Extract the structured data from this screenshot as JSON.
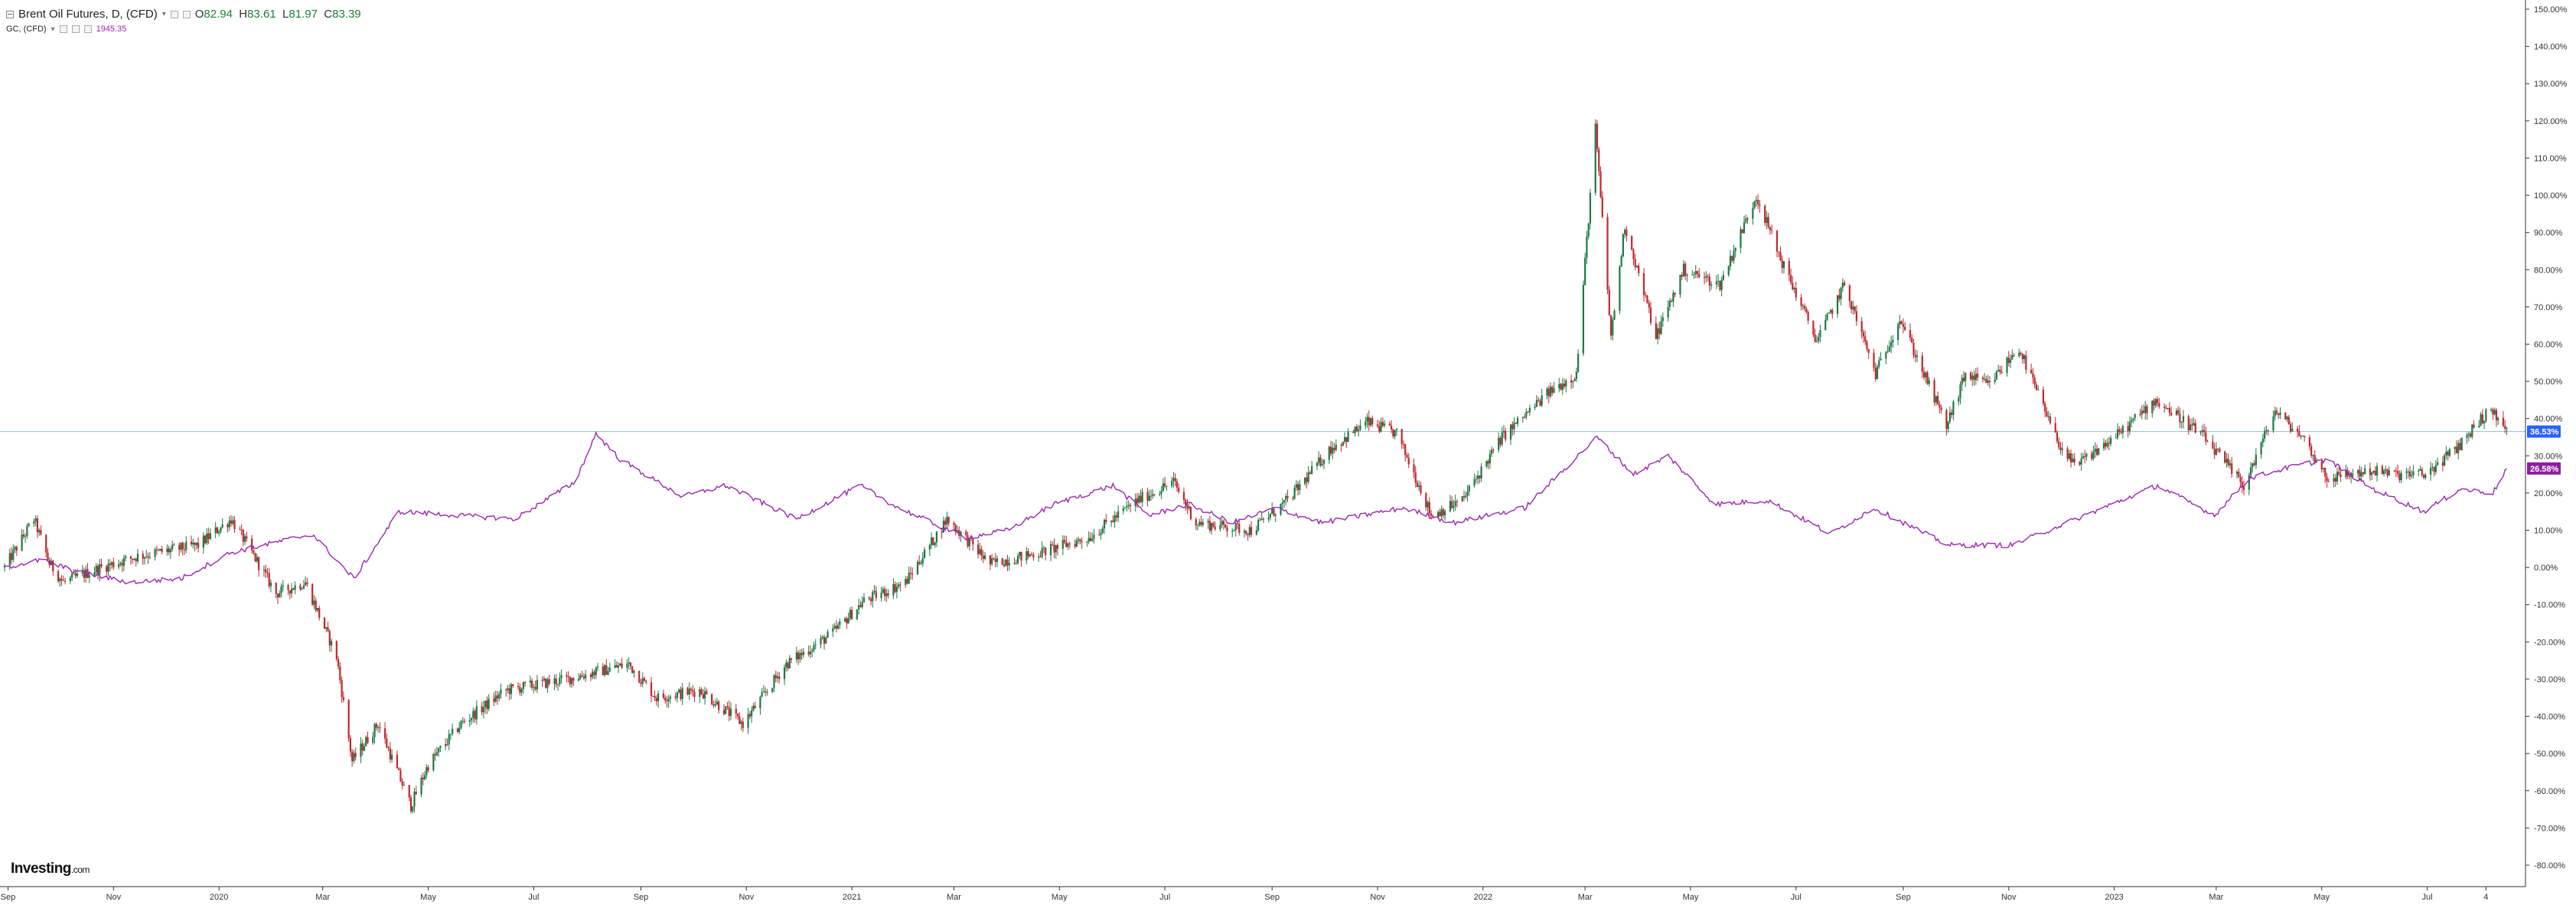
{
  "legend": {
    "main": {
      "symbol": "Brent Oil Futures, D, (CFD)",
      "open_label": "O",
      "open": "82.94",
      "high_label": "H",
      "high": "83.61",
      "low_label": "L",
      "low": "81.97",
      "close_label": "C",
      "close": "83.39"
    },
    "overlay": {
      "symbol": "GC, (CFD)",
      "value": "1945.35"
    }
  },
  "brand": {
    "name": "Investing",
    "suffix": ".com"
  },
  "colors": {
    "up": "#1b7a45",
    "down": "#c0272d",
    "overlay": "#9b27af",
    "last_price_badge": "#2962ff",
    "overlay_badge": "#8e1fa0",
    "reference_line": "#9fc3d6",
    "axis": "#333333"
  },
  "chart_data": {
    "type": "line",
    "scale": "percent",
    "ylim": [
      -85,
      150
    ],
    "yticks": [
      "150.00%",
      "140.00%",
      "130.00%",
      "120.00%",
      "110.00%",
      "100.00%",
      "90.00%",
      "80.00%",
      "70.00%",
      "60.00%",
      "50.00%",
      "40.00%",
      "30.00%",
      "20.00%",
      "10.00%",
      "0.00%",
      "-10.00%",
      "-20.00%",
      "-30.00%",
      "-40.00%",
      "-50.00%",
      "-60.00%",
      "-70.00%",
      "-80.00%"
    ],
    "ytick_values": [
      150,
      140,
      130,
      120,
      110,
      100,
      90,
      80,
      70,
      60,
      50,
      40,
      30,
      20,
      10,
      0,
      -10,
      -20,
      -30,
      -40,
      -50,
      -60,
      -70,
      -80
    ],
    "xticks": [
      "Sep",
      "Nov",
      "2020",
      "Mar",
      "May",
      "Jul",
      "Sep",
      "Nov",
      "2021",
      "Mar",
      "May",
      "Jul",
      "Sep",
      "Nov",
      "2022",
      "Mar",
      "May",
      "Jul",
      "Sep",
      "Nov",
      "2023",
      "Mar",
      "May",
      "Jul",
      "4"
    ],
    "xtick_dates": [
      "2019-09-01",
      "2019-11-01",
      "2020-01-01",
      "2020-03-01",
      "2020-05-01",
      "2020-07-01",
      "2020-09-01",
      "2020-11-01",
      "2021-01-01",
      "2021-03-01",
      "2021-05-01",
      "2021-07-01",
      "2021-09-01",
      "2021-11-01",
      "2022-01-01",
      "2022-03-01",
      "2022-05-01",
      "2022-07-01",
      "2022-09-01",
      "2022-11-01",
      "2023-01-01",
      "2023-03-01",
      "2023-05-01",
      "2023-07-01",
      "2023-08-04"
    ],
    "xlim": [
      "2019-08-30",
      "2023-08-18"
    ],
    "series": [
      {
        "name": "Brent Oil Futures, D, (CFD)",
        "style": "candlestick",
        "last_badge": "36.53%",
        "points": [
          [
            "2019-08-30",
            0
          ],
          [
            "2019-09-16",
            13
          ],
          [
            "2019-09-25",
            1
          ],
          [
            "2019-10-03",
            -4
          ],
          [
            "2019-10-25",
            0
          ],
          [
            "2019-11-15",
            3
          ],
          [
            "2019-12-20",
            6
          ],
          [
            "2020-01-08",
            13
          ],
          [
            "2020-01-20",
            4
          ],
          [
            "2020-02-03",
            -7
          ],
          [
            "2020-02-20",
            -4
          ],
          [
            "2020-03-09",
            -24
          ],
          [
            "2020-03-18",
            -52
          ],
          [
            "2020-04-02",
            -42
          ],
          [
            "2020-04-21",
            -64
          ],
          [
            "2020-05-01",
            -53
          ],
          [
            "2020-05-20",
            -42
          ],
          [
            "2020-06-15",
            -33
          ],
          [
            "2020-07-20",
            -30
          ],
          [
            "2020-08-25",
            -26
          ],
          [
            "2020-09-10",
            -35
          ],
          [
            "2020-10-05",
            -33
          ],
          [
            "2020-10-30",
            -42
          ],
          [
            "2020-11-24",
            -26
          ],
          [
            "2020-12-20",
            -18
          ],
          [
            "2021-01-08",
            -9
          ],
          [
            "2021-02-01",
            -4
          ],
          [
            "2021-02-25",
            13
          ],
          [
            "2021-03-22",
            1
          ],
          [
            "2021-04-20",
            4
          ],
          [
            "2021-05-18",
            8
          ],
          [
            "2021-06-15",
            18
          ],
          [
            "2021-07-06",
            23
          ],
          [
            "2021-07-19",
            12
          ],
          [
            "2021-08-20",
            10
          ],
          [
            "2021-09-10",
            18
          ],
          [
            "2021-10-05",
            32
          ],
          [
            "2021-10-26",
            39
          ],
          [
            "2021-11-12",
            36
          ],
          [
            "2021-11-26",
            21
          ],
          [
            "2021-12-02",
            14
          ],
          [
            "2021-12-20",
            18
          ],
          [
            "2022-01-12",
            35
          ],
          [
            "2022-02-08",
            47
          ],
          [
            "2022-02-24",
            52
          ],
          [
            "2022-03-07",
            118
          ],
          [
            "2022-03-16",
            62
          ],
          [
            "2022-03-24",
            92
          ],
          [
            "2022-04-11",
            62
          ],
          [
            "2022-04-27",
            80
          ],
          [
            "2022-05-18",
            76
          ],
          [
            "2022-06-08",
            100
          ],
          [
            "2022-06-22",
            83
          ],
          [
            "2022-07-13",
            61
          ],
          [
            "2022-07-29",
            76
          ],
          [
            "2022-08-16",
            52
          ],
          [
            "2022-08-30",
            67
          ],
          [
            "2022-09-26",
            38
          ],
          [
            "2022-10-07",
            52
          ],
          [
            "2022-10-20",
            49
          ],
          [
            "2022-11-07",
            59
          ],
          [
            "2022-11-28",
            35
          ],
          [
            "2022-12-09",
            27
          ],
          [
            "2023-01-04",
            36
          ],
          [
            "2023-01-25",
            45
          ],
          [
            "2023-02-20",
            36
          ],
          [
            "2023-03-17",
            22
          ],
          [
            "2023-04-04",
            42
          ],
          [
            "2023-04-20",
            35
          ],
          [
            "2023-05-04",
            24
          ],
          [
            "2023-05-30",
            26
          ],
          [
            "2023-06-12",
            25
          ],
          [
            "2023-06-30",
            25
          ],
          [
            "2023-07-18",
            32
          ],
          [
            "2023-08-01",
            40
          ],
          [
            "2023-08-08",
            42
          ],
          [
            "2023-08-16",
            36.53
          ]
        ]
      },
      {
        "name": "GC, (CFD)",
        "style": "line",
        "last_badge": "26.58%",
        "points": [
          [
            "2019-08-30",
            0
          ],
          [
            "2019-09-20",
            2
          ],
          [
            "2019-10-10",
            -1
          ],
          [
            "2019-11-10",
            -4
          ],
          [
            "2019-12-10",
            -3
          ],
          [
            "2020-01-08",
            4
          ],
          [
            "2020-02-24",
            9
          ],
          [
            "2020-03-19",
            -3
          ],
          [
            "2020-04-14",
            15
          ],
          [
            "2020-05-18",
            14
          ],
          [
            "2020-06-20",
            13
          ],
          [
            "2020-07-25",
            23
          ],
          [
            "2020-08-06",
            36
          ],
          [
            "2020-08-20",
            29
          ],
          [
            "2020-09-25",
            19
          ],
          [
            "2020-10-20",
            22
          ],
          [
            "2020-11-30",
            13
          ],
          [
            "2020-12-20",
            18
          ],
          [
            "2021-01-06",
            22
          ],
          [
            "2021-01-28",
            16
          ],
          [
            "2021-03-08",
            8
          ],
          [
            "2021-04-01",
            10
          ],
          [
            "2021-04-28",
            17
          ],
          [
            "2021-06-01",
            22
          ],
          [
            "2021-06-22",
            14
          ],
          [
            "2021-07-15",
            17
          ],
          [
            "2021-08-09",
            12
          ],
          [
            "2021-09-03",
            16
          ],
          [
            "2021-09-30",
            12
          ],
          [
            "2021-11-16",
            16
          ],
          [
            "2021-12-15",
            12
          ],
          [
            "2022-01-25",
            16
          ],
          [
            "2022-03-08",
            35
          ],
          [
            "2022-03-29",
            25
          ],
          [
            "2022-04-18",
            30
          ],
          [
            "2022-05-15",
            17
          ],
          [
            "2022-06-15",
            18
          ],
          [
            "2022-07-21",
            9
          ],
          [
            "2022-08-15",
            16
          ],
          [
            "2022-09-27",
            6
          ],
          [
            "2022-11-03",
            6
          ],
          [
            "2022-12-15",
            14
          ],
          [
            "2023-01-26",
            22
          ],
          [
            "2023-02-28",
            14
          ],
          [
            "2023-03-20",
            24
          ],
          [
            "2023-04-13",
            27
          ],
          [
            "2023-05-04",
            29
          ],
          [
            "2023-05-31",
            21
          ],
          [
            "2023-06-29",
            15
          ],
          [
            "2023-07-20",
            21
          ],
          [
            "2023-08-08",
            20
          ],
          [
            "2023-08-16",
            26.58
          ]
        ]
      }
    ],
    "reference_line": 36.53,
    "grid": false,
    "legend_position": "top-left"
  }
}
